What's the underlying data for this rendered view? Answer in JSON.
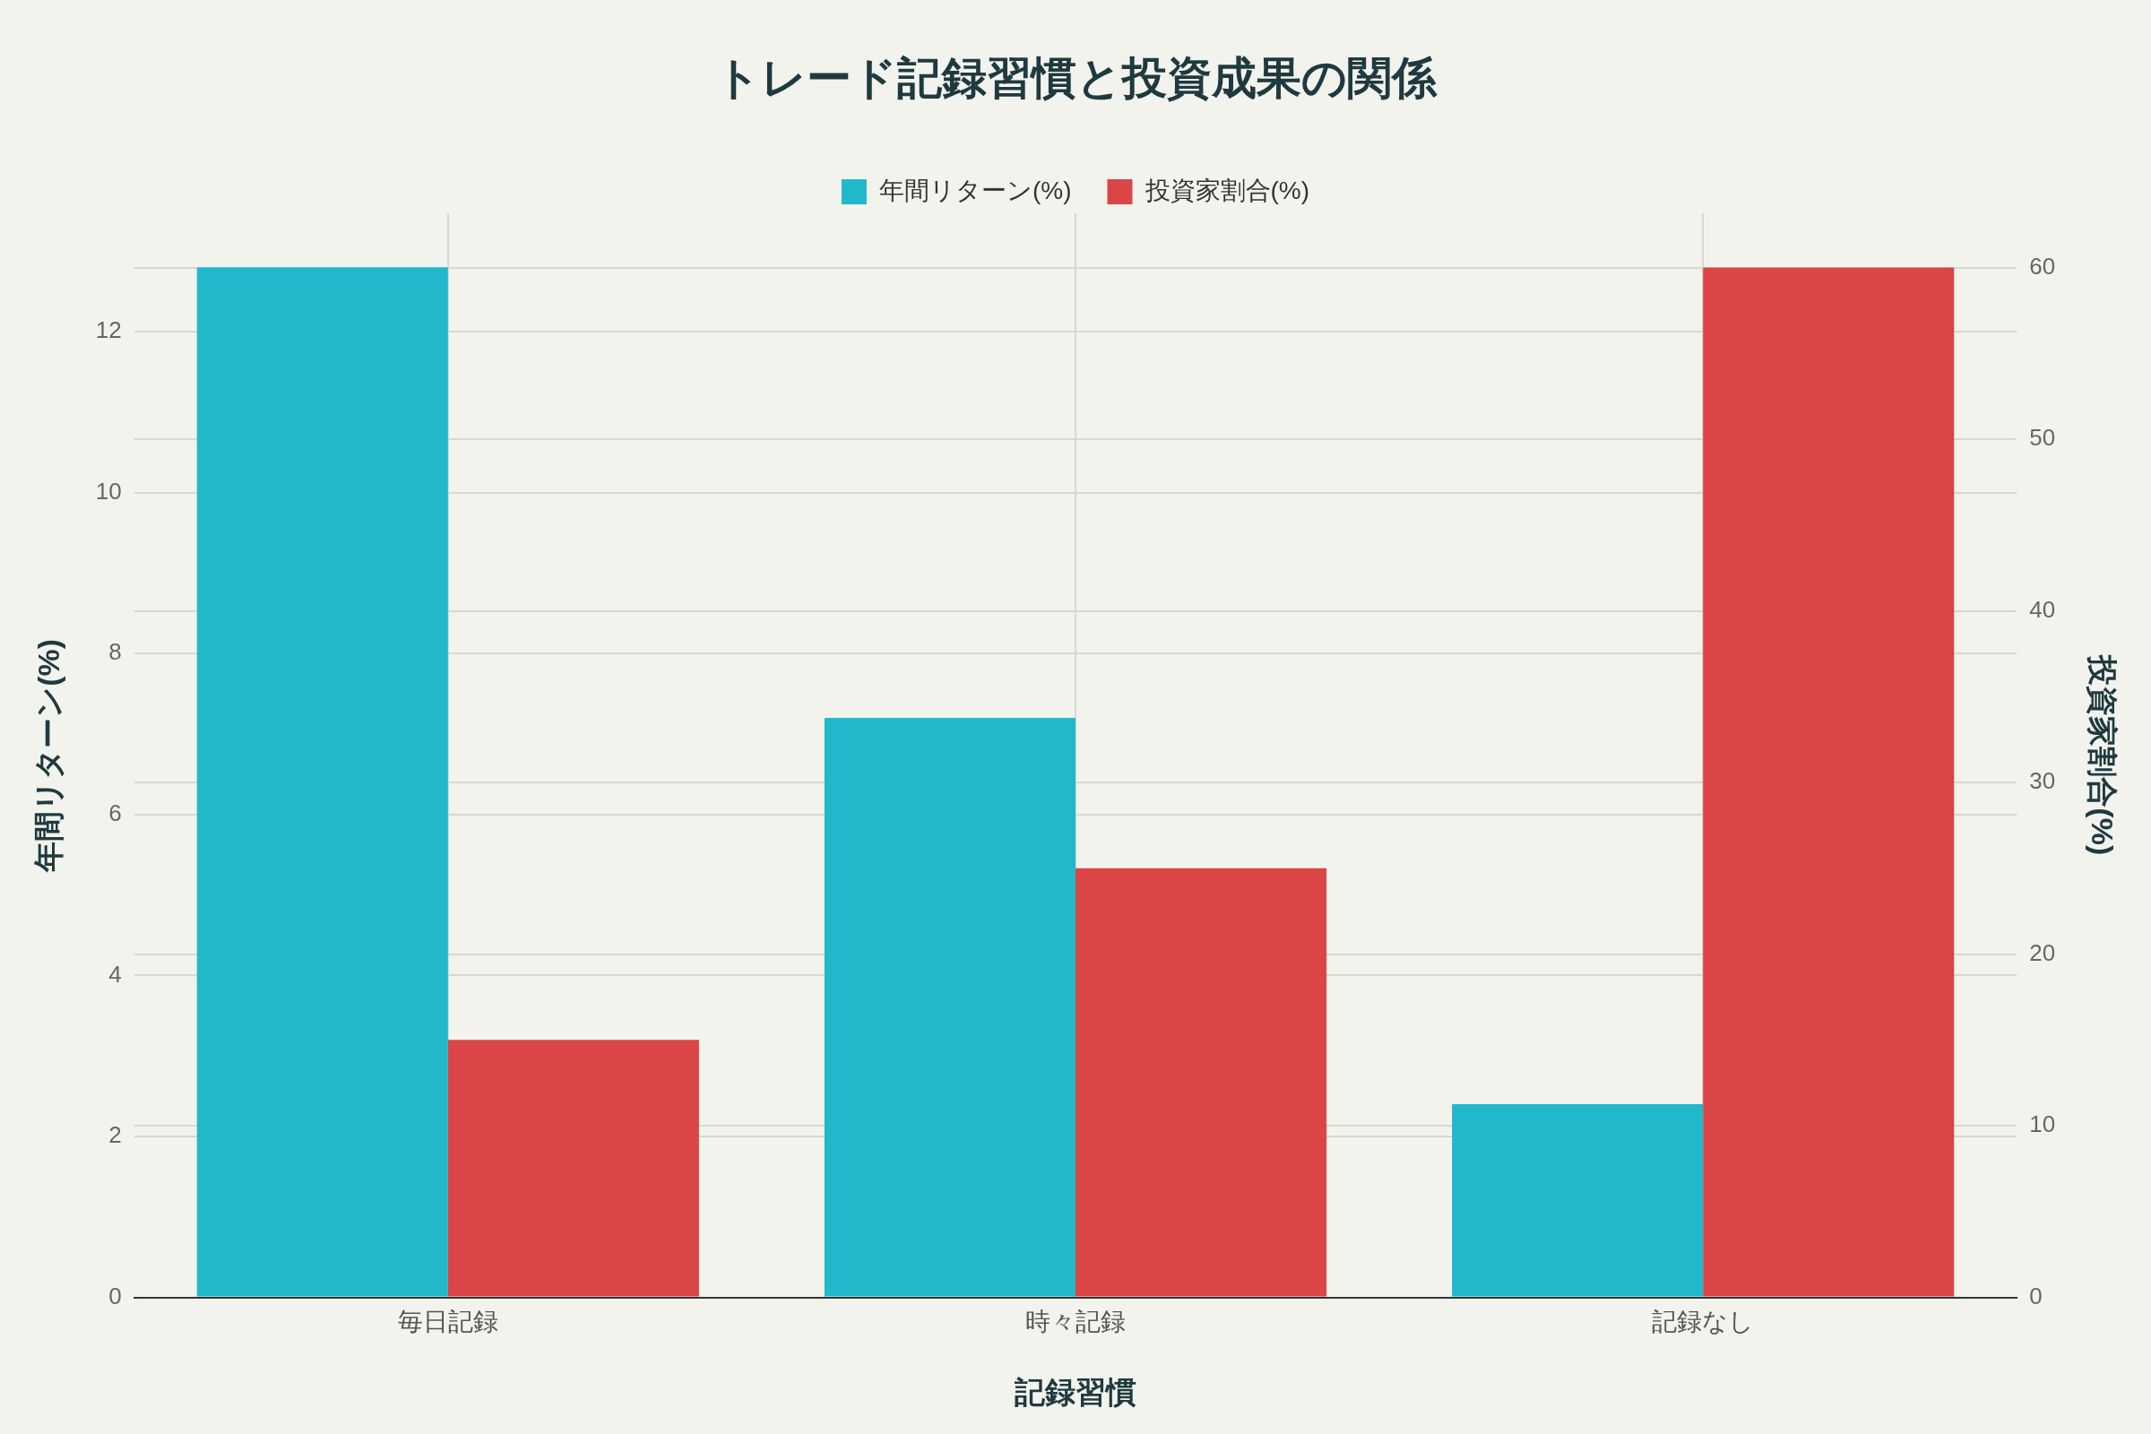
{
  "chart_data": {
    "type": "bar",
    "title": "トレード記録習慣と投資成果の関係",
    "xlabel": "記録習慣",
    "ylabel": "年間リターン(%)",
    "y2label": "投資家割合(%)",
    "categories": [
      "毎日記録",
      "時々記録",
      "記録なし"
    ],
    "series": [
      {
        "name": "年間リターン(%)",
        "color": "#21b8cc",
        "values": [
          12.8,
          7.2,
          2.4
        ]
      },
      {
        "name": "投資家割合(%)",
        "color": "#db4545",
        "values": [
          15,
          25,
          60
        ],
        "axis": "y2"
      }
    ],
    "ylim": [
      0,
      13.47
    ],
    "yticks": [
      0,
      2,
      4,
      6,
      8,
      10,
      12
    ],
    "y2lim": [
      0,
      63.16
    ],
    "y2ticks": [
      0,
      10,
      20,
      30,
      40,
      50,
      60
    ],
    "grid": true,
    "legend": "top"
  }
}
